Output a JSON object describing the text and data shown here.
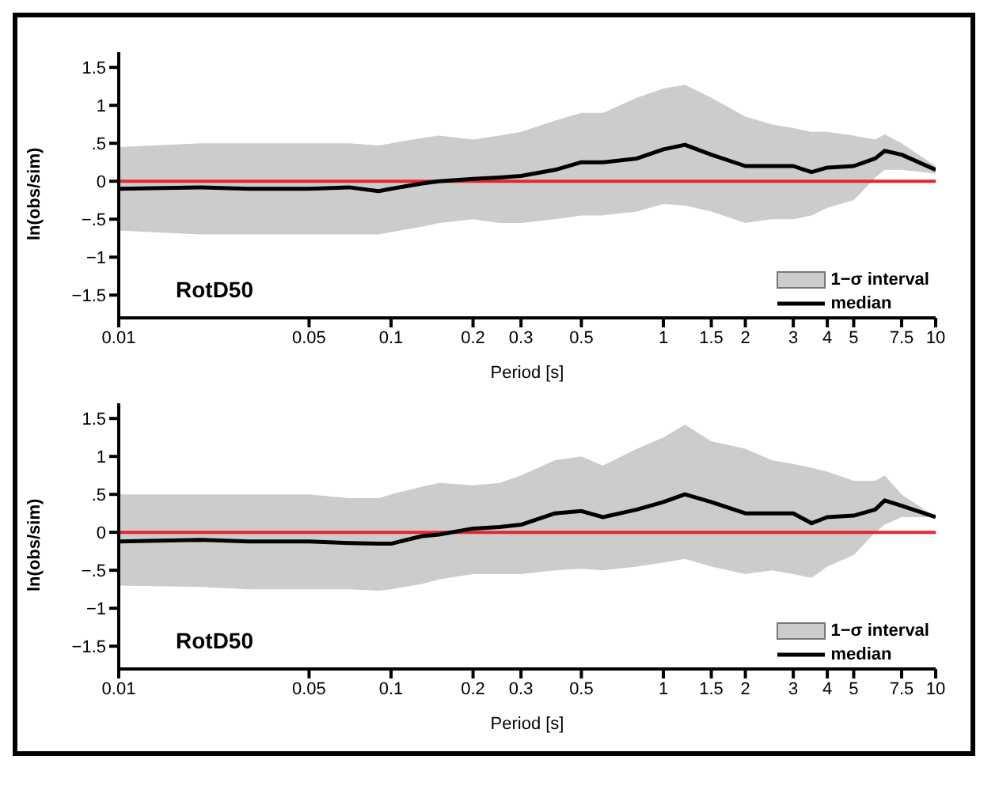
{
  "chart_data": [
    {
      "type": "line",
      "xlabel": "Period [s]",
      "ylabel": "ln(obs/sim)",
      "log": "x",
      "xlim": [
        0.01,
        10
      ],
      "xticks": [
        0.01,
        0.05,
        0.1,
        0.2,
        0.3,
        0.5,
        1,
        1.5,
        2,
        3,
        4,
        5,
        7.5,
        10
      ],
      "ylim": [
        -1.8,
        1.7
      ],
      "yticks": [
        {
          "value": -1.5,
          "label": "−1.5"
        },
        {
          "value": -1,
          "label": "−1"
        },
        {
          "value": -0.5,
          "label": "−.5"
        },
        0,
        {
          "value": 0.5,
          "label": ".5"
        },
        1,
        1.5
      ],
      "legend": "bottom right",
      "annotations": [
        "RotD50",
        "1−σ interval"
      ],
      "ref_lines": [
        {
          "axis": "y",
          "value": 0,
          "color": "#e8262a"
        }
      ],
      "x": [
        0.01,
        0.02,
        0.03,
        0.05,
        0.07,
        0.09,
        0.1,
        0.13,
        0.15,
        0.2,
        0.25,
        0.3,
        0.4,
        0.5,
        0.6,
        0.8,
        1,
        1.2,
        1.5,
        2,
        2.5,
        3,
        3.5,
        4,
        5,
        6,
        6.5,
        7.5,
        10
      ],
      "series": [
        {
          "name": "median",
          "color": "#000000",
          "values": [
            -0.1,
            -0.08,
            -0.1,
            -0.1,
            -0.08,
            -0.13,
            -0.1,
            -0.03,
            0,
            0.03,
            0.05,
            0.07,
            0.15,
            0.25,
            0.25,
            0.3,
            0.42,
            0.48,
            0.35,
            0.2,
            0.2,
            0.2,
            0.12,
            0.18,
            0.2,
            0.3,
            0.4,
            0.35,
            0.15
          ],
          "lower": [
            -0.65,
            -0.7,
            -0.7,
            -0.7,
            -0.7,
            -0.7,
            -0.67,
            -0.6,
            -0.55,
            -0.5,
            -0.55,
            -0.55,
            -0.5,
            -0.45,
            -0.45,
            -0.4,
            -0.3,
            -0.32,
            -0.4,
            -0.55,
            -0.5,
            -0.5,
            -0.45,
            -0.35,
            -0.25,
            0.05,
            0.15,
            0.15,
            0.1
          ],
          "upper": [
            0.45,
            0.5,
            0.5,
            0.5,
            0.5,
            0.47,
            0.5,
            0.57,
            0.6,
            0.55,
            0.6,
            0.65,
            0.8,
            0.9,
            0.9,
            1.1,
            1.22,
            1.27,
            1.1,
            0.85,
            0.75,
            0.7,
            0.65,
            0.65,
            0.6,
            0.55,
            0.62,
            0.5,
            0.2
          ]
        }
      ]
    },
    {
      "type": "line",
      "xlabel": "Period [s]",
      "ylabel": "ln(obs/sim)",
      "log": "x",
      "xlim": [
        0.01,
        10
      ],
      "xticks": [
        0.01,
        0.05,
        0.1,
        0.2,
        0.3,
        0.5,
        1,
        1.5,
        2,
        3,
        4,
        5,
        7.5,
        10
      ],
      "ylim": [
        -1.8,
        1.7
      ],
      "yticks": [
        {
          "value": -1.5,
          "label": "−1.5"
        },
        {
          "value": -1,
          "label": "−1"
        },
        {
          "value": -0.5,
          "label": "−.5"
        },
        0,
        {
          "value": 0.5,
          "label": ".5"
        },
        1,
        1.5
      ],
      "legend": "bottom right",
      "annotations": [
        "RotD50",
        "1−σ interval"
      ],
      "ref_lines": [
        {
          "axis": "y",
          "value": 0,
          "color": "#e8262a"
        }
      ],
      "x": [
        0.01,
        0.02,
        0.03,
        0.05,
        0.07,
        0.09,
        0.1,
        0.13,
        0.15,
        0.2,
        0.25,
        0.3,
        0.4,
        0.5,
        0.6,
        0.8,
        1,
        1.2,
        1.5,
        2,
        2.5,
        3,
        3.5,
        4,
        5,
        6,
        6.5,
        7.5,
        10
      ],
      "series": [
        {
          "name": "median",
          "color": "#000000",
          "values": [
            -0.12,
            -0.1,
            -0.12,
            -0.12,
            -0.14,
            -0.15,
            -0.15,
            -0.05,
            -0.03,
            0.05,
            0.07,
            0.1,
            0.25,
            0.28,
            0.2,
            0.3,
            0.4,
            0.5,
            0.4,
            0.25,
            0.25,
            0.25,
            0.12,
            0.2,
            0.22,
            0.3,
            0.42,
            0.35,
            0.2
          ],
          "lower": [
            -0.7,
            -0.72,
            -0.75,
            -0.75,
            -0.75,
            -0.77,
            -0.75,
            -0.68,
            -0.62,
            -0.55,
            -0.55,
            -0.55,
            -0.5,
            -0.48,
            -0.5,
            -0.45,
            -0.4,
            -0.35,
            -0.45,
            -0.55,
            -0.5,
            -0.55,
            -0.6,
            -0.45,
            -0.3,
            0,
            0.1,
            0.2,
            0.2
          ],
          "upper": [
            0.5,
            0.5,
            0.5,
            0.5,
            0.45,
            0.45,
            0.5,
            0.6,
            0.65,
            0.62,
            0.65,
            0.75,
            0.95,
            1,
            0.88,
            1.1,
            1.25,
            1.42,
            1.2,
            1.1,
            0.95,
            0.9,
            0.85,
            0.8,
            0.68,
            0.68,
            0.75,
            0.5,
            0.2
          ]
        }
      ]
    }
  ]
}
